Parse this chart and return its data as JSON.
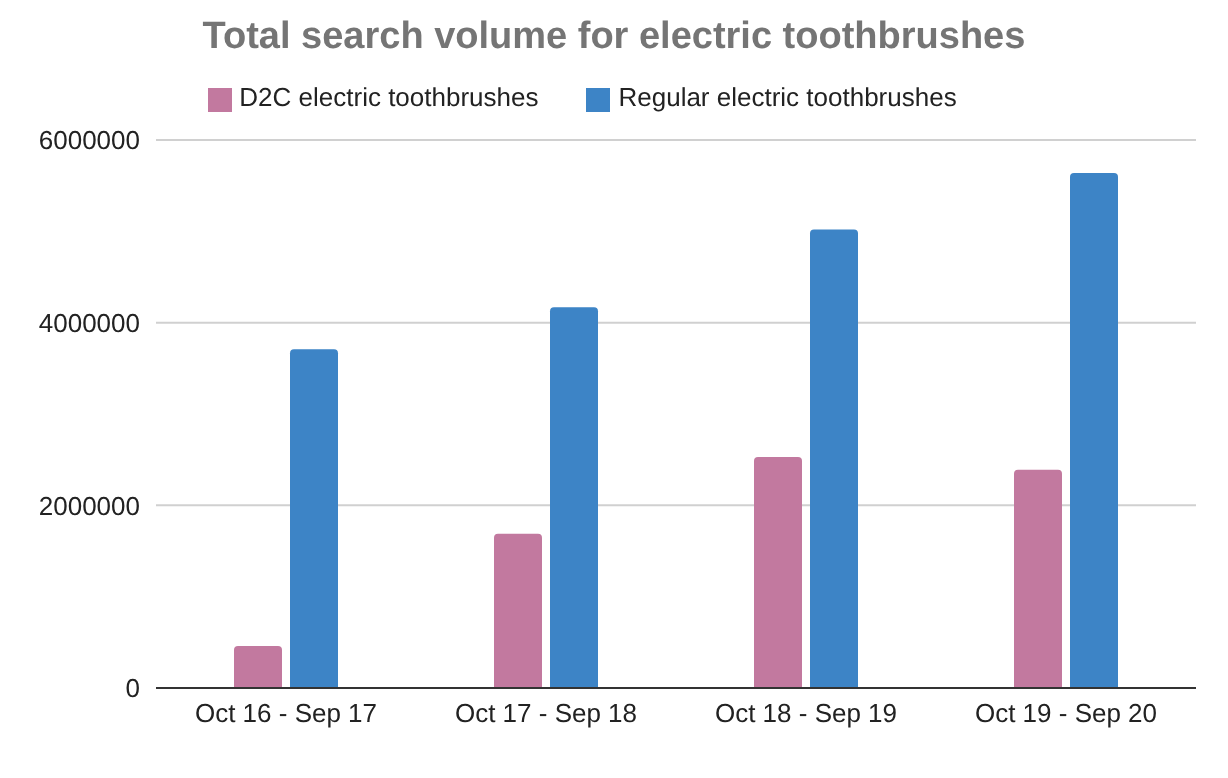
{
  "chart_data": {
    "type": "bar",
    "title": "Total search volume for electric toothbrushes",
    "categories": [
      "Oct 16 - Sep 17",
      "Oct 17 - Sep 18",
      "Oct 18 - Sep 19",
      "Oct 19 - Sep 20"
    ],
    "series": [
      {
        "name": "D2C electric toothbrushes",
        "color": "#c2799f",
        "values": [
          460000,
          1690000,
          2530000,
          2390000
        ]
      },
      {
        "name": "Regular electric toothbrushes",
        "color": "#3d84c6",
        "values": [
          3710000,
          4170000,
          5020000,
          5640000
        ]
      }
    ],
    "ylim": [
      0,
      6000000
    ],
    "yticks": [
      0,
      2000000,
      4000000,
      6000000
    ],
    "grid": "y",
    "legend": "top"
  }
}
